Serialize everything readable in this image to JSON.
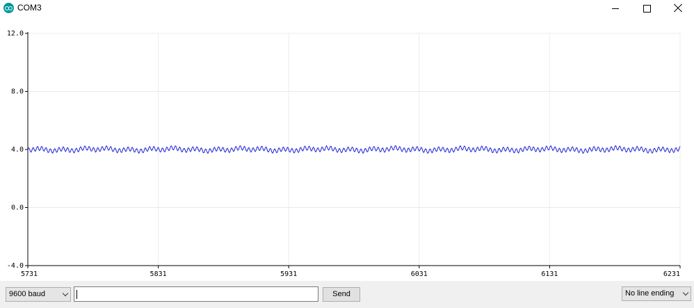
{
  "window": {
    "title": "COM3"
  },
  "chart_data": {
    "type": "line",
    "title": "",
    "xlabel": "",
    "ylabel": "",
    "xlim": [
      5731,
      6231
    ],
    "ylim": [
      -4.0,
      12.0
    ],
    "x_ticks": [
      "5731",
      "5831",
      "5931",
      "6031",
      "6131",
      "6231"
    ],
    "y_ticks": [
      "12.0",
      "8.0",
      "4.0",
      "0.0",
      "-4.0"
    ],
    "grid": true,
    "series": [
      {
        "name": "",
        "color": "#1f1fd6",
        "mean": 4.0,
        "amplitude": 0.15
      }
    ]
  },
  "controls": {
    "baud_select": "9600 baud",
    "send_input_value": "",
    "send_label": "Send",
    "line_ending_select": "No line ending"
  }
}
